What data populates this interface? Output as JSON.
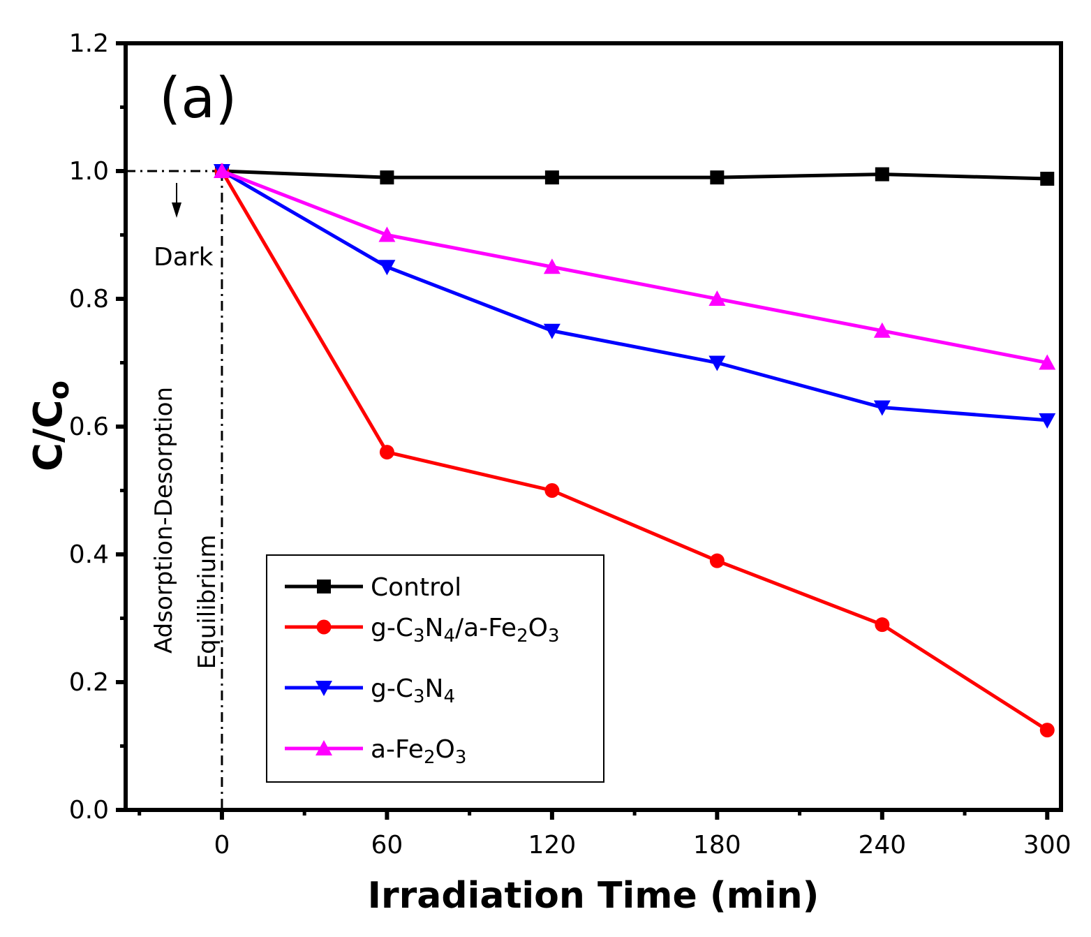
{
  "chart_data": {
    "type": "line",
    "panel_label": "(a)",
    "xlabel": "Irradiation Time (min)",
    "ylabel": {
      "main": "C/C",
      "sub": "o"
    },
    "xlim": [
      -35,
      305
    ],
    "ylim": [
      0,
      1.2
    ],
    "xticks": [
      0,
      60,
      120,
      180,
      240,
      300
    ],
    "xtick_labels": [
      "0",
      "60",
      "120",
      "180",
      "240",
      "300"
    ],
    "yticks": [
      0.0,
      0.2,
      0.4,
      0.6,
      0.8,
      1.0,
      1.2
    ],
    "ytick_labels": [
      "0.0",
      "0.2",
      "0.4",
      "0.6",
      "0.8",
      "1.0",
      "1.2"
    ],
    "x": [
      0,
      60,
      120,
      180,
      240,
      300
    ],
    "series": [
      {
        "name": "Control",
        "label_parts": [
          [
            "Control",
            false
          ]
        ],
        "color": "#000000",
        "marker": "square",
        "values": [
          1.0,
          0.99,
          0.99,
          0.99,
          0.995,
          0.988
        ]
      },
      {
        "name": "g-C3N4/a-Fe2O3",
        "label_parts": [
          [
            "g-C",
            false
          ],
          [
            "3",
            true
          ],
          [
            "N",
            false
          ],
          [
            "4",
            true
          ],
          [
            "/a-Fe",
            false
          ],
          [
            "2",
            true
          ],
          [
            "O",
            false
          ],
          [
            "3",
            true
          ]
        ],
        "color": "#ff0000",
        "marker": "circle",
        "values": [
          1.0,
          0.56,
          0.5,
          0.39,
          0.29,
          0.125
        ]
      },
      {
        "name": "g-C3N4",
        "label_parts": [
          [
            "g-C",
            false
          ],
          [
            "3",
            true
          ],
          [
            "N",
            false
          ],
          [
            "4",
            true
          ]
        ],
        "color": "#0000ff",
        "marker": "triangle-down",
        "values": [
          1.0,
          0.85,
          0.75,
          0.7,
          0.63,
          0.61
        ]
      },
      {
        "name": "a-Fe2O3",
        "label_parts": [
          [
            "a-Fe",
            false
          ],
          [
            "2",
            true
          ],
          [
            "O",
            false
          ],
          [
            "3",
            true
          ]
        ],
        "color": "#ff00ff",
        "marker": "triangle-up",
        "values": [
          1.0,
          0.9,
          0.85,
          0.8,
          0.75,
          0.7
        ]
      }
    ],
    "annotations": {
      "dark": "Dark",
      "adsorption": "Adsorption-Desorption",
      "equilibrium": "Equilibrium"
    },
    "legend_position": "bottom-center",
    "grid": false
  }
}
